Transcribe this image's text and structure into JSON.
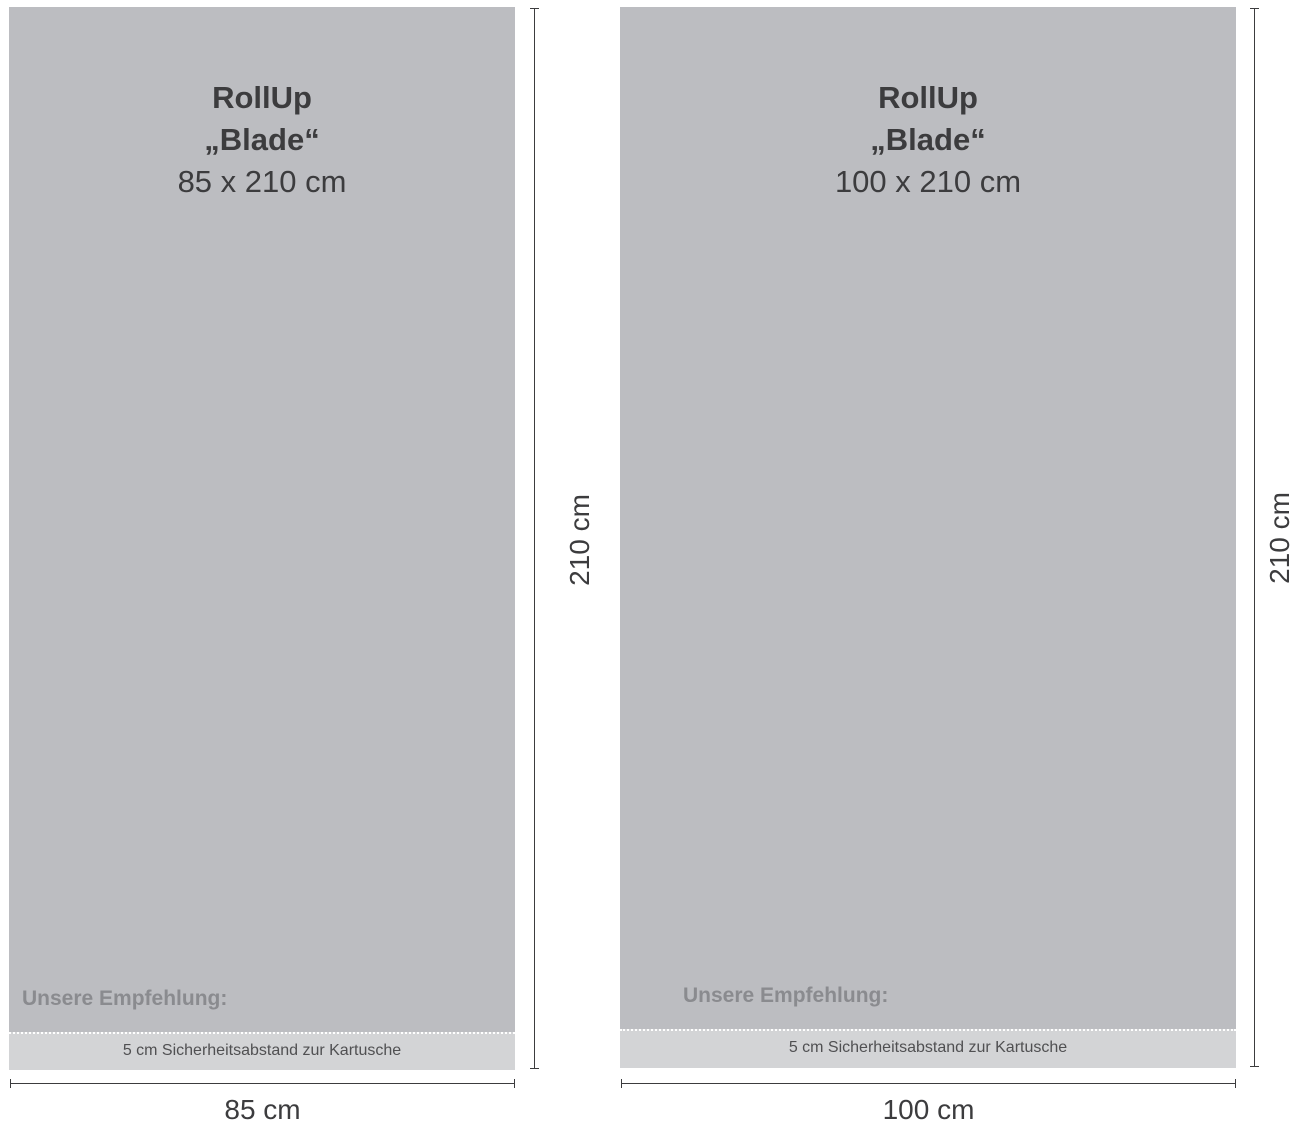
{
  "panels": [
    {
      "name": "RollUp",
      "model": "„Blade“",
      "size": "85 x 210 cm",
      "recommendation": "Unsere Empfehlung:",
      "safety_note": "5 cm Sicherheitsabstand zur Kartusche",
      "width_label": "85 cm",
      "height_label": "210 cm"
    },
    {
      "name": "RollUp",
      "model": "„Blade“",
      "size": "100 x 210 cm",
      "recommendation": "Unsere Empfehlung:",
      "safety_note": "5 cm Sicherheitsabstand zur Kartusche",
      "width_label": "100 cm",
      "height_label": "210 cm"
    }
  ],
  "colors": {
    "panel": "#bcbdc1",
    "safety_zone": "#d3d4d6",
    "text": "#3c3c3e",
    "recommendation": "#8a8b8f"
  }
}
